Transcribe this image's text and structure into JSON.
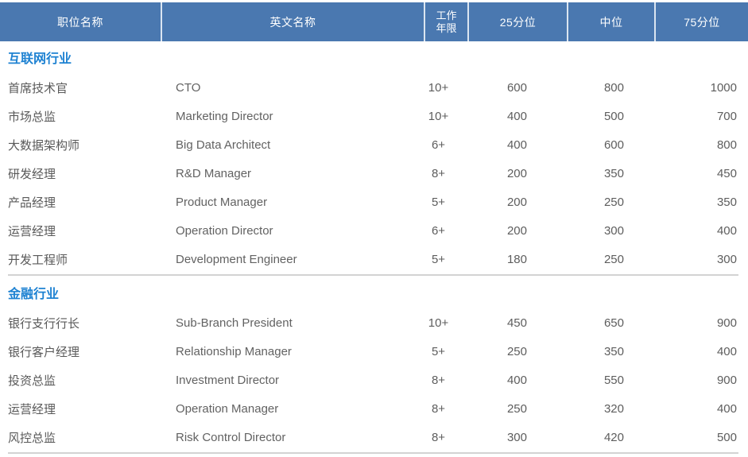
{
  "table": {
    "headers": [
      "职位名称",
      "英文名称",
      "工作\n年限",
      "25分位",
      "中位",
      "75分位"
    ],
    "header_bg_color": "#4a78b0",
    "header_text_color": "#ffffff",
    "section_title_color": "#1e82d2",
    "body_text_color": "#595959",
    "sections": [
      {
        "title": "互联网行业",
        "rows": [
          [
            "首席技术官",
            "CTO",
            "10+",
            "600",
            "800",
            "1000"
          ],
          [
            "市场总监",
            "Marketing Director",
            "10+",
            "400",
            "500",
            "700"
          ],
          [
            "大数据架构师",
            "Big Data Architect",
            "6+",
            "400",
            "600",
            "800"
          ],
          [
            "研发经理",
            "R&D Manager",
            "8+",
            "200",
            "350",
            "450"
          ],
          [
            "产品经理",
            "Product Manager",
            "5+",
            "200",
            "250",
            "350"
          ],
          [
            "运营经理",
            "Operation Director",
            "6+",
            "200",
            "300",
            "400"
          ],
          [
            "开发工程师",
            "Development Engineer",
            "5+",
            "180",
            "250",
            "300"
          ]
        ]
      },
      {
        "title": "金融行业",
        "rows": [
          [
            "银行支行行长",
            "Sub-Branch President",
            "10+",
            "450",
            "650",
            "900"
          ],
          [
            "银行客户经理",
            "Relationship Manager",
            "5+",
            "250",
            "350",
            "400"
          ],
          [
            "投资总监",
            "Investment Director",
            "8+",
            "400",
            "550",
            "900"
          ],
          [
            "运营经理",
            "Operation Manager",
            "8+",
            "250",
            "320",
            "400"
          ],
          [
            "风控总监",
            "Risk Control Director",
            "8+",
            "300",
            "420",
            "500"
          ]
        ]
      }
    ]
  }
}
